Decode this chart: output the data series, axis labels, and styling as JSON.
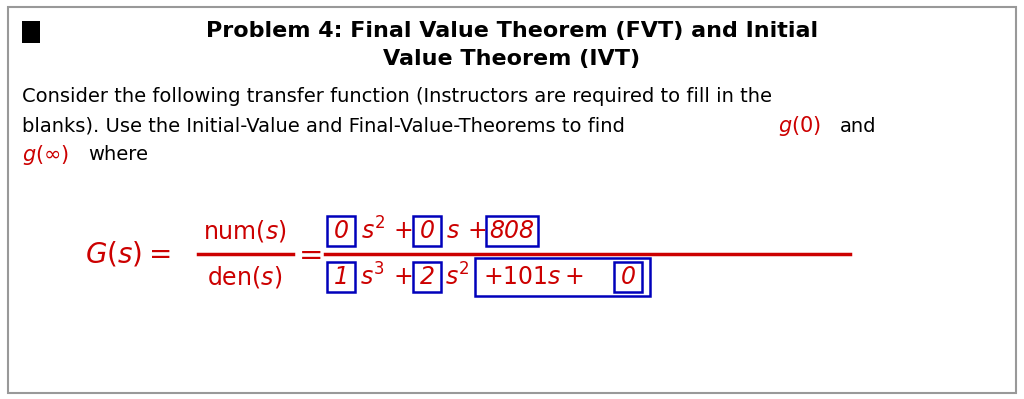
{
  "title_line1": "Problem 4: Final Value Theorem (FVT) and Initial",
  "title_line2": "Value Theorem (IVT)",
  "body_line1": "Consider the following transfer function (Instructors are required to fill in the",
  "body_line2": "blanks). Use the Initial-Value and Final-Value-Theorems to find",
  "body_line2_and": "and",
  "body_line3_where": "where",
  "black_color": "#000000",
  "red_color": "#cc0000",
  "blue_color": "#0000bb",
  "bg_color": "#ffffff",
  "border_color": "#999999",
  "title_fontsize": 16,
  "body_fontsize": 14,
  "formula_fontsize": 15
}
